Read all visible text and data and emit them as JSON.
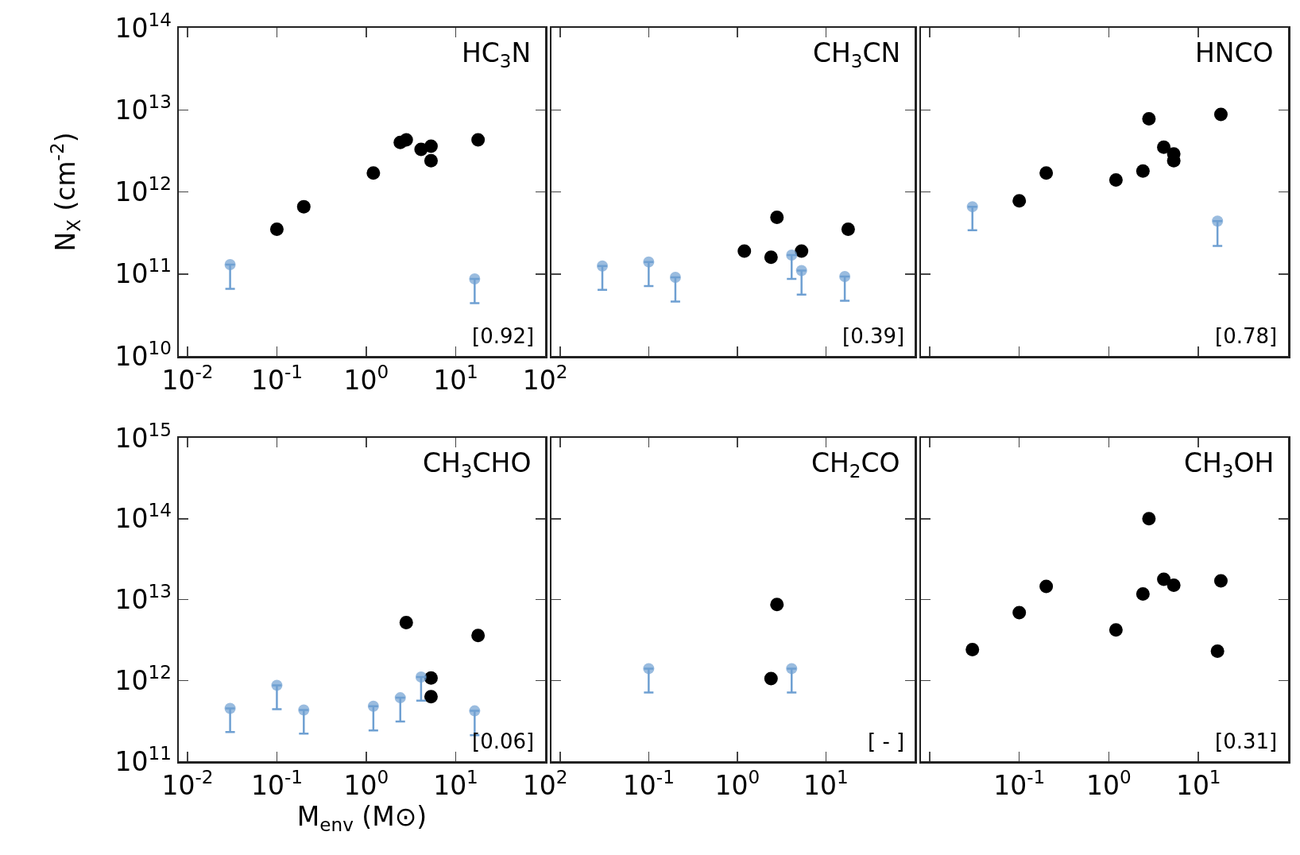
{
  "chart_data": [
    {
      "type": "scatter",
      "log": "xy",
      "title": "HC$_{3}$N",
      "ylabel": "N$_{X}$ (cm$^{-2}$)",
      "marker": "circle",
      "xlim": [
        0.008,
        100
      ],
      "ylim": [
        10000000000.0,
        100000000000000.0
      ],
      "xticks": [
        {
          "value": 0.01,
          "label": "10$^{-2}$"
        },
        {
          "value": 0.1,
          "label": "10$^{-1}$"
        },
        {
          "value": 1,
          "label": "10$^{0}$"
        },
        {
          "value": 10,
          "label": "10$^{1}$"
        },
        {
          "value": 100,
          "label": "10$^{2}$"
        }
      ],
      "yticks": [
        {
          "value": 10000000000.0,
          "label": "10$^{10}$"
        },
        {
          "value": 100000000000.0,
          "label": "10$^{11}$"
        },
        {
          "value": 1000000000000.0,
          "label": "10$^{12}$"
        },
        {
          "value": 10000000000000.0,
          "label": "10$^{13}$"
        },
        {
          "value": 100000000000000.0,
          "label": "10$^{14}$"
        }
      ],
      "annotations": [
        "[0.92]"
      ],
      "series": [
        {
          "color": "#000000",
          "x": [
            0.1,
            0.2,
            1.2,
            2.4,
            2.8,
            4.1,
            5.3,
            5.3,
            17.8
          ],
          "values": [
            350000000000.0,
            660000000000.0,
            1700000000000.0,
            4000000000000.0,
            4300000000000.0,
            3300000000000.0,
            3600000000000.0,
            2400000000000.0,
            4300000000000.0
          ]
        },
        {
          "color": "#6fa0d2",
          "x": [
            0.03,
            16.3
          ],
          "values": [
            130000000000.0,
            87000000000.0
          ],
          "errors": [
            [
              66000000000.0,
              130000000000.0
            ],
            [
              44000000000.0,
              87000000000.0
            ]
          ]
        }
      ]
    },
    {
      "type": "scatter",
      "log": "xy",
      "title": "CH$_{3}$CN",
      "marker": "circle",
      "tick_labels": false,
      "xlim": [
        0.008,
        100
      ],
      "ylim": [
        10000000000.0,
        100000000000000.0
      ],
      "xticks": [
        {
          "value": 0.01,
          "label": null
        },
        {
          "value": 0.1,
          "label": null
        },
        {
          "value": 1,
          "label": null
        },
        {
          "value": 10,
          "label": null
        },
        {
          "value": 100,
          "label": null
        }
      ],
      "yticks": [
        {
          "value": 10000000000.0,
          "label": null
        },
        {
          "value": 100000000000.0,
          "label": null
        },
        {
          "value": 1000000000000.0,
          "label": null
        },
        {
          "value": 10000000000000.0,
          "label": null
        },
        {
          "value": 100000000000000.0,
          "label": null
        }
      ],
      "annotations": [
        "[0.39]"
      ],
      "series": [
        {
          "color": "#000000",
          "x": [
            1.2,
            2.4,
            2.8,
            5.3,
            17.8
          ],
          "values": [
            190000000000.0,
            160000000000.0,
            490000000000.0,
            190000000000.0,
            350000000000.0
          ]
        },
        {
          "color": "#6fa0d2",
          "x": [
            0.03,
            0.1,
            0.2,
            4.1,
            5.3,
            16.3
          ],
          "values": [
            125000000000.0,
            140000000000.0,
            91000000000.0,
            170000000000.0,
            110000000000.0,
            93000000000.0
          ],
          "errors": [
            [
              64000000000.0,
              125000000000.0
            ],
            [
              71000000000.0,
              140000000000.0
            ],
            [
              46000000000.0,
              91000000000.0
            ],
            [
              87000000000.0,
              170000000000.0
            ],
            [
              56000000000.0,
              110000000000.0
            ],
            [
              47000000000.0,
              93000000000.0
            ]
          ]
        }
      ]
    },
    {
      "type": "scatter",
      "log": "xy",
      "title": "HNCO",
      "marker": "circle",
      "tick_labels": false,
      "xlim": [
        0.008,
        100
      ],
      "ylim": [
        10000000000.0,
        100000000000000.0
      ],
      "xticks": [
        {
          "value": 0.01,
          "label": null
        },
        {
          "value": 0.1,
          "label": null
        },
        {
          "value": 1,
          "label": null
        },
        {
          "value": 10,
          "label": null
        },
        {
          "value": 100,
          "label": null
        }
      ],
      "yticks": [
        {
          "value": 10000000000.0,
          "label": null
        },
        {
          "value": 100000000000.0,
          "label": null
        },
        {
          "value": 1000000000000.0,
          "label": null
        },
        {
          "value": 10000000000000.0,
          "label": null
        },
        {
          "value": 100000000000000.0,
          "label": null
        }
      ],
      "annotations": [
        "[0.78]"
      ],
      "series": [
        {
          "color": "#000000",
          "x": [
            0.1,
            0.2,
            1.2,
            2.4,
            2.8,
            4.1,
            5.3,
            5.3,
            17.8
          ],
          "values": [
            780000000000.0,
            1700000000000.0,
            1400000000000.0,
            1800000000000.0,
            7800000000000.0,
            3500000000000.0,
            2900000000000.0,
            2400000000000.0,
            8800000000000.0
          ]
        },
        {
          "color": "#6fa0d2",
          "x": [
            0.03,
            16.3
          ],
          "values": [
            660000000000.0,
            440000000000.0
          ],
          "errors": [
            [
              340000000000.0,
              660000000000.0
            ],
            [
              220000000000.0,
              440000000000.0
            ]
          ]
        }
      ]
    },
    {
      "type": "scatter",
      "log": "xy",
      "title": "CH$_{3}$CHO",
      "xlabel": "M$_{env}$ (M⊙)",
      "marker": "circle",
      "xlim": [
        0.008,
        100
      ],
      "ylim": [
        100000000000.0,
        1000000000000000.0
      ],
      "xticks": [
        {
          "value": 0.01,
          "label": "10$^{-2}$"
        },
        {
          "value": 0.1,
          "label": "10$^{-1}$"
        },
        {
          "value": 1,
          "label": "10$^{0}$"
        },
        {
          "value": 10,
          "label": "10$^{1}$"
        },
        {
          "value": 100,
          "label": "10$^{2}$"
        }
      ],
      "yticks": [
        {
          "value": 100000000000.0,
          "label": "10$^{11}$"
        },
        {
          "value": 1000000000000.0,
          "label": "10$^{12}$"
        },
        {
          "value": 10000000000000.0,
          "label": "10$^{13}$"
        },
        {
          "value": 100000000000000.0,
          "label": "10$^{14}$"
        },
        {
          "value": 1000000000000000.0,
          "label": "10$^{15}$"
        }
      ],
      "annotations": [
        "[0.06]"
      ],
      "series": [
        {
          "color": "#000000",
          "x": [
            2.8,
            5.3,
            5.3,
            17.8
          ],
          "values": [
            5200000000000.0,
            1070000000000.0,
            630000000000.0,
            3600000000000.0
          ]
        },
        {
          "color": "#6fa0d2",
          "x": [
            0.03,
            0.1,
            0.2,
            1.2,
            2.4,
            4.1,
            16.3
          ],
          "values": [
            450000000000.0,
            870000000000.0,
            430000000000.0,
            480000000000.0,
            610000000000.0,
            1100000000000.0,
            420000000000.0
          ],
          "errors": [
            [
              230000000000.0,
              450000000000.0
            ],
            [
              440000000000.0,
              870000000000.0
            ],
            [
              220000000000.0,
              430000000000.0
            ],
            [
              240000000000.0,
              480000000000.0
            ],
            [
              310000000000.0,
              610000000000.0
            ],
            [
              560000000000.0,
              1100000000000.0
            ],
            [
              210000000000.0,
              420000000000.0
            ]
          ]
        }
      ]
    },
    {
      "type": "scatter",
      "log": "xy",
      "title": "CH$_{2}$CO",
      "marker": "circle",
      "tick_labels": "x",
      "xlim": [
        0.008,
        100
      ],
      "ylim": [
        100000000000.0,
        1000000000000000.0
      ],
      "xticks": [
        {
          "value": 0.01,
          "label": null
        },
        {
          "value": 0.1,
          "label": "10$^{-1}$"
        },
        {
          "value": 1,
          "label": "10$^{0}$"
        },
        {
          "value": 10,
          "label": "10$^{1}$"
        },
        {
          "value": 100,
          "label": null
        }
      ],
      "yticks": [
        {
          "value": 100000000000.0,
          "label": null
        },
        {
          "value": 1000000000000.0,
          "label": null
        },
        {
          "value": 10000000000000.0,
          "label": null
        },
        {
          "value": 100000000000000.0,
          "label": null
        },
        {
          "value": 1000000000000000.0,
          "label": null
        }
      ],
      "annotations": [
        "[ - ]"
      ],
      "series": [
        {
          "color": "#000000",
          "x": [
            2.4,
            2.8
          ],
          "values": [
            1050000000000.0,
            8700000000000.0
          ]
        },
        {
          "color": "#6fa0d2",
          "x": [
            0.1,
            4.1
          ],
          "values": [
            1400000000000.0,
            1400000000000.0
          ],
          "errors": [
            [
              710000000000.0,
              1400000000000.0
            ],
            [
              710000000000.0,
              1400000000000.0
            ]
          ]
        }
      ]
    },
    {
      "type": "scatter",
      "log": "xy",
      "title": "CH$_{3}$OH",
      "marker": "circle",
      "tick_labels": "x",
      "xlim": [
        0.008,
        100
      ],
      "ylim": [
        100000000000.0,
        1000000000000000.0
      ],
      "xticks": [
        {
          "value": 0.01,
          "label": null
        },
        {
          "value": 0.1,
          "label": "10$^{-1}$"
        },
        {
          "value": 1,
          "label": "10$^{0}$"
        },
        {
          "value": 10,
          "label": "10$^{1}$"
        },
        {
          "value": 100,
          "label": null
        }
      ],
      "yticks": [
        {
          "value": 100000000000.0,
          "label": null
        },
        {
          "value": 1000000000000.0,
          "label": null
        },
        {
          "value": 10000000000000.0,
          "label": null
        },
        {
          "value": 100000000000000.0,
          "label": null
        },
        {
          "value": 1000000000000000.0,
          "label": null
        }
      ],
      "annotations": [
        "[0.31]"
      ],
      "series": [
        {
          "color": "#000000",
          "x": [
            0.03,
            0.1,
            0.2,
            1.2,
            2.4,
            2.8,
            4.1,
            5.3,
            16.3,
            17.8
          ],
          "values": [
            2400000000000.0,
            6900000000000.0,
            14500000000000.0,
            4200000000000.0,
            11700000000000.0,
            100000000000000.0,
            17800000000000.0,
            15000000000000.0,
            2300000000000.0,
            17000000000000.0
          ]
        }
      ]
    }
  ]
}
